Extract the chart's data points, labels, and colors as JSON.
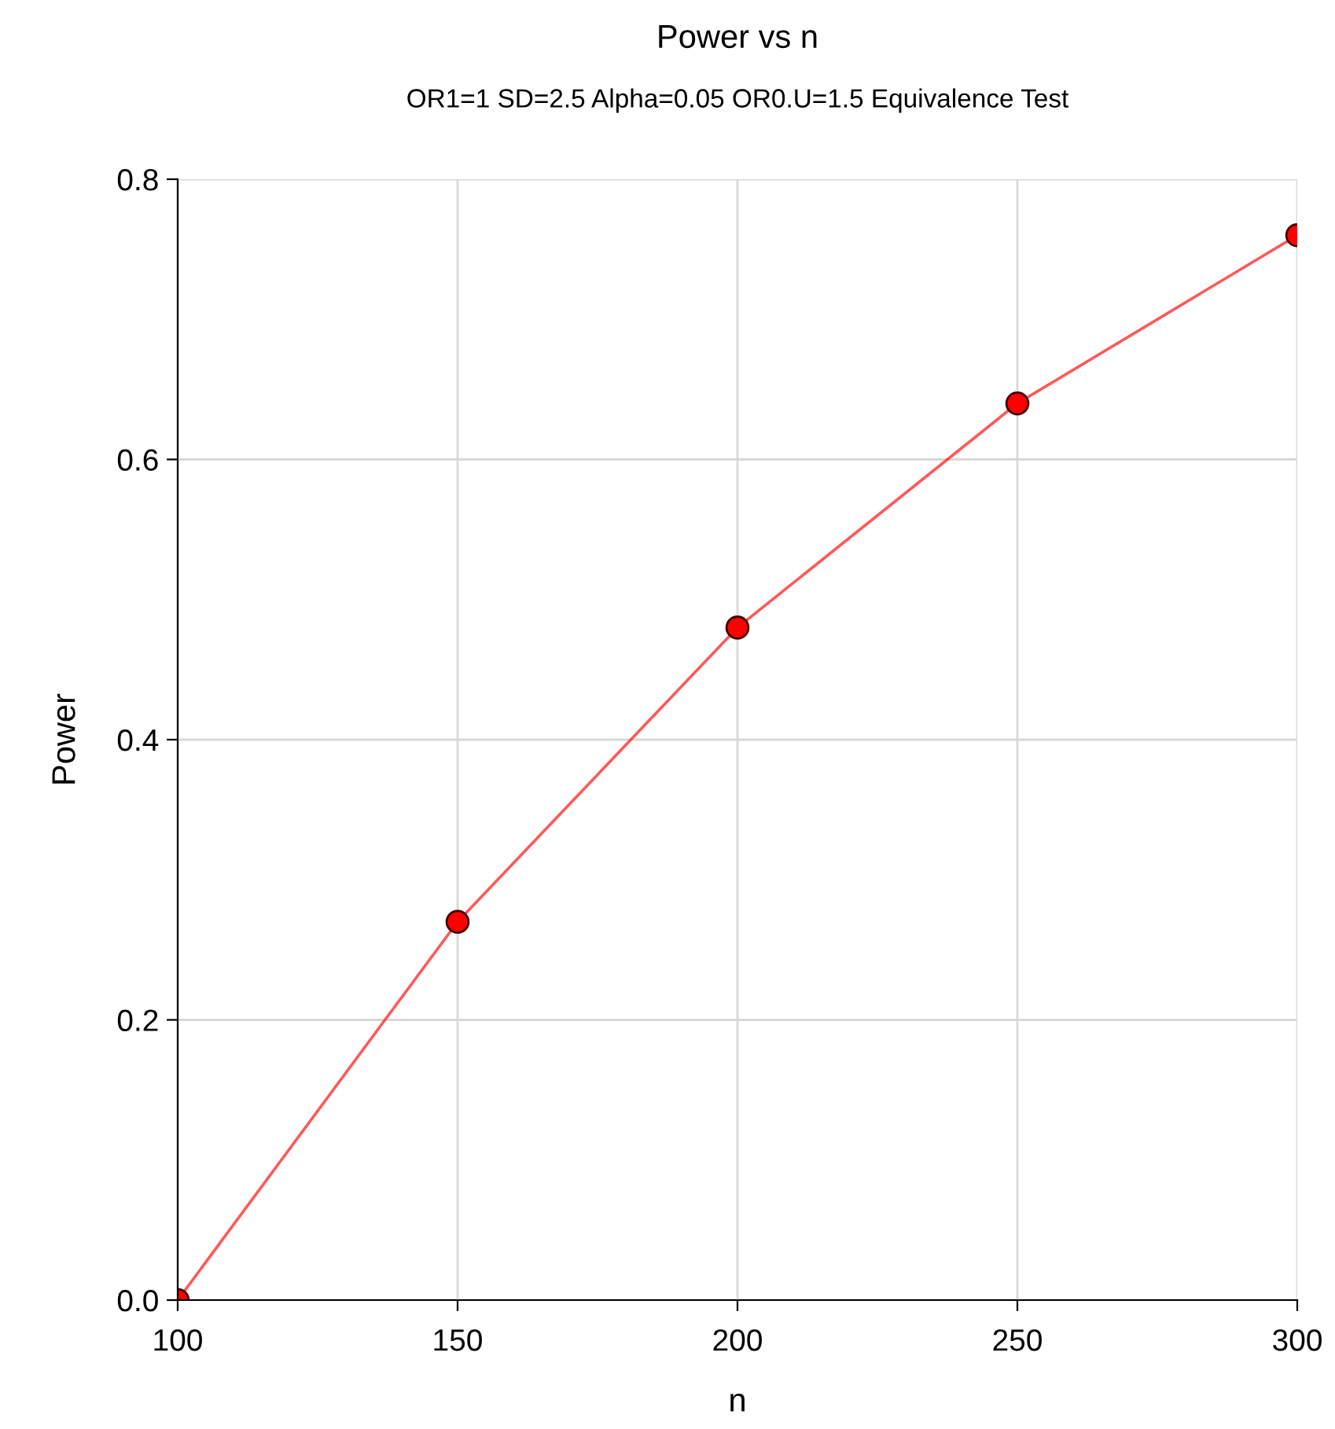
{
  "chart_data": {
    "type": "line",
    "title": "Power vs n",
    "subtitle": "OR1=1 SD=2.5 Alpha=0.05 OR0.U=1.5 Equivalence Test",
    "xlabel": "n",
    "ylabel": "Power",
    "x": [
      100,
      150,
      200,
      250,
      300
    ],
    "series": [
      {
        "color": "#ff0000",
        "values": [
          0.0,
          0.27,
          0.48,
          0.64,
          0.76
        ]
      }
    ],
    "xlim": [
      100,
      300
    ],
    "xticks": [
      100,
      150,
      200,
      250,
      300
    ],
    "ylim": [
      0,
      0.8
    ],
    "yticks": [
      {
        "value": 0,
        "label": "0.0"
      },
      0.2,
      0.4,
      0.6,
      0.8
    ],
    "grid": true,
    "marker": "circle",
    "line_style": "solid"
  }
}
